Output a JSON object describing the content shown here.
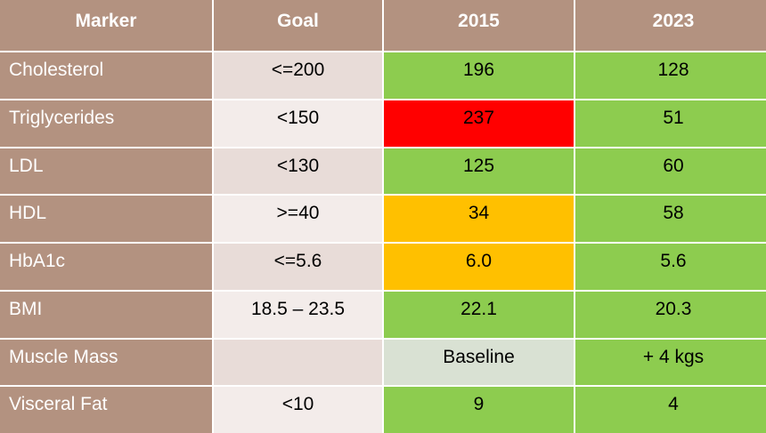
{
  "headers": [
    "Marker",
    "Goal",
    "2015",
    "2023"
  ],
  "rows": [
    {
      "marker": "Cholesterol",
      "goal": "<=200",
      "v2015": "196",
      "v2023": "128"
    },
    {
      "marker": "Triglycerides",
      "goal": "<150",
      "v2015": "237",
      "v2023": "51"
    },
    {
      "marker": "LDL",
      "goal": "<130",
      "v2015": "125",
      "v2023": "60"
    },
    {
      "marker": "HDL",
      "goal": ">=40",
      "v2015": "34",
      "v2023": "58"
    },
    {
      "marker": "HbA1c",
      "goal": "<=5.6",
      "v2015": "6.0",
      "v2023": "5.6"
    },
    {
      "marker": "BMI",
      "goal": "18.5 – 23.5",
      "v2015": "22.1",
      "v2023": "20.3"
    },
    {
      "marker": "Muscle Mass",
      "goal": "",
      "v2015": "Baseline",
      "v2023": "+ 4 kgs"
    },
    {
      "marker": "Visceral Fat",
      "goal": "<10",
      "v2015": "9",
      "v2023": "4"
    }
  ],
  "colors": {
    "header": "#b39280",
    "good": "#8dcc4f",
    "bad": "#ff0000",
    "warning": "#ffc000",
    "neutral": "#d9e1d3"
  },
  "status_2015": [
    "good",
    "bad",
    "good",
    "warning",
    "warning",
    "good",
    "neutral",
    "good"
  ],
  "status_2023": [
    "good",
    "good",
    "good",
    "good",
    "good",
    "good",
    "good",
    "good"
  ]
}
